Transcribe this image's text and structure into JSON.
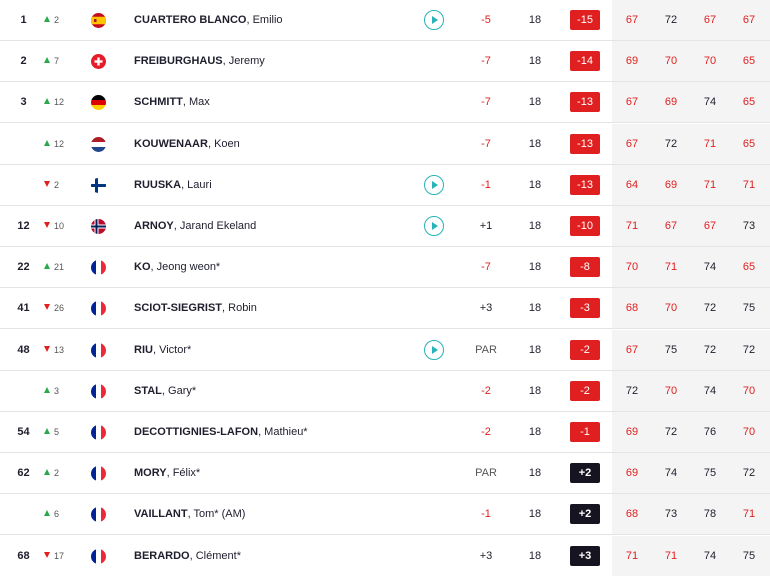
{
  "players": [
    {
      "pos": "1",
      "dir": "up",
      "move": "2",
      "flag": "es",
      "last": "CUARTERO BLANCO",
      "first": ", Emilio",
      "play": true,
      "today": "-5",
      "thru": "18",
      "total": "-15",
      "r": [
        "67",
        "72",
        "67",
        "67"
      ]
    },
    {
      "pos": "2",
      "dir": "up",
      "move": "7",
      "flag": "ch",
      "last": "FREIBURGHAUS",
      "first": ", Jeremy",
      "play": false,
      "today": "-7",
      "thru": "18",
      "total": "-14",
      "r": [
        "69",
        "70",
        "70",
        "65"
      ]
    },
    {
      "pos": "3",
      "dir": "up",
      "move": "12",
      "flag": "de",
      "last": "SCHMITT",
      "first": ", Max",
      "play": false,
      "today": "-7",
      "thru": "18",
      "total": "-13",
      "r": [
        "67",
        "69",
        "74",
        "65"
      ]
    },
    {
      "pos": "",
      "dir": "up",
      "move": "12",
      "flag": "nl",
      "last": "KOUWENAAR",
      "first": ", Koen",
      "play": false,
      "today": "-7",
      "thru": "18",
      "total": "-13",
      "r": [
        "67",
        "72",
        "71",
        "65"
      ]
    },
    {
      "pos": "",
      "dir": "down",
      "move": "2",
      "flag": "fi",
      "last": "RUUSKA",
      "first": ", Lauri",
      "play": true,
      "today": "-1",
      "thru": "18",
      "total": "-13",
      "r": [
        "64",
        "69",
        "71",
        "71"
      ]
    },
    {
      "pos": "12",
      "dir": "down",
      "move": "10",
      "flag": "no",
      "last": "ARNOY",
      "first": ", Jarand Ekeland",
      "play": true,
      "today": "+1",
      "thru": "18",
      "total": "-10",
      "r": [
        "71",
        "67",
        "67",
        "73"
      ]
    },
    {
      "pos": "22",
      "dir": "up",
      "move": "21",
      "flag": "fr",
      "last": "KO",
      "first": ", Jeong weon*",
      "play": false,
      "today": "-7",
      "thru": "18",
      "total": "-8",
      "r": [
        "70",
        "71",
        "74",
        "65"
      ]
    },
    {
      "pos": "41",
      "dir": "down",
      "move": "26",
      "flag": "fr",
      "last": "SCIOT-SIEGRIST",
      "first": ", Robin",
      "play": false,
      "today": "+3",
      "thru": "18",
      "total": "-3",
      "r": [
        "68",
        "70",
        "72",
        "75"
      ]
    },
    {
      "pos": "48",
      "dir": "down",
      "move": "13",
      "flag": "fr",
      "last": "RIU",
      "first": ", Victor*",
      "play": true,
      "today": "PAR",
      "thru": "18",
      "total": "-2",
      "r": [
        "67",
        "75",
        "72",
        "72"
      ]
    },
    {
      "pos": "",
      "dir": "up",
      "move": "3",
      "flag": "fr",
      "last": "STAL",
      "first": ", Gary*",
      "play": false,
      "today": "-2",
      "thru": "18",
      "total": "-2",
      "r": [
        "72",
        "70",
        "74",
        "70"
      ]
    },
    {
      "pos": "54",
      "dir": "up",
      "move": "5",
      "flag": "fr",
      "last": "DECOTTIGNIES-LAFON",
      "first": ", Mathieu*",
      "play": false,
      "today": "-2",
      "thru": "18",
      "total": "-1",
      "r": [
        "69",
        "72",
        "76",
        "70"
      ]
    },
    {
      "pos": "62",
      "dir": "up",
      "move": "2",
      "flag": "fr",
      "last": "MORY",
      "first": ", Félix*",
      "play": false,
      "today": "PAR",
      "thru": "18",
      "total": "+2",
      "r": [
        "69",
        "74",
        "75",
        "72"
      ]
    },
    {
      "pos": "",
      "dir": "up",
      "move": "6",
      "flag": "fr",
      "last": "VAILLANT",
      "first": ", Tom* (AM)",
      "play": false,
      "today": "-1",
      "thru": "18",
      "total": "+2",
      "r": [
        "68",
        "73",
        "78",
        "71"
      ]
    },
    {
      "pos": "68",
      "dir": "down",
      "move": "17",
      "flag": "fr",
      "last": "BERARDO",
      "first": ", Clément*",
      "play": false,
      "today": "+3",
      "thru": "18",
      "total": "+3",
      "r": [
        "71",
        "71",
        "74",
        "75"
      ]
    }
  ],
  "colors": {
    "under_par": "#e02020",
    "over_par_badge": "#161421",
    "up": "#2aa84a",
    "down": "#e02020",
    "play": "#27b3b8"
  },
  "icons": {
    "up": "arrow-up-icon",
    "down": "arrow-down-icon",
    "play": "play-icon",
    "flag": "flag-icon"
  }
}
